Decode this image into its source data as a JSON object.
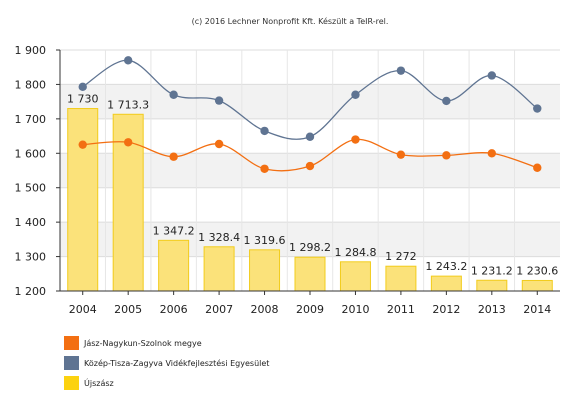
{
  "source_note": "(c) 2016 Lechner Nonprofit Kft. Készült a TeIR-rel.",
  "chart_data": {
    "type": "bar+line",
    "categories": [
      "2004",
      "2005",
      "2006",
      "2007",
      "2008",
      "2009",
      "2010",
      "2011",
      "2012",
      "2013",
      "2014"
    ],
    "ylim": [
      1200,
      1900
    ],
    "yticks": [
      1200,
      1300,
      1400,
      1500,
      1600,
      1700,
      1800,
      1900
    ],
    "ytick_labels": [
      "1 200",
      "1 300",
      "1 400",
      "1 500",
      "1 600",
      "1 700",
      "1 800",
      "1 900"
    ],
    "grid": "horizontal, alternating bands",
    "legend_position": "bottom-left",
    "bar_series": {
      "name": "Újszász",
      "color": "#fbe27a",
      "stroke": "#f2cc1c",
      "values": [
        1730,
        1713.3,
        1347.2,
        1328.4,
        1319.6,
        1298.2,
        1284.8,
        1272,
        1243.2,
        1231.2,
        1230.6
      ],
      "labels": [
        "1 730",
        "1 713.3",
        "1 347.2",
        "1 328.4",
        "1 319.6",
        "1 298.2",
        "1 284.8",
        "1 272",
        "1 243.2",
        "1 231.2",
        "1 230.6"
      ]
    },
    "line_series": [
      {
        "name": "Jász-Nagykun-Szolnok megye",
        "color": "#f36f12",
        "values": [
          1625,
          1632,
          1590,
          1627,
          1555,
          1563,
          1640,
          1596,
          1594,
          1600,
          1558
        ]
      },
      {
        "name": "Közép-Tisza-Zagyva Vidékfejlesztési Egyesület",
        "color": "#5f7492",
        "values": [
          1793,
          1870,
          1770,
          1753,
          1665,
          1648,
          1770,
          1840,
          1752,
          1826,
          1730
        ]
      }
    ]
  },
  "legend": {
    "items": [
      {
        "label": "Jász-Nagykun-Szolnok megye",
        "color": "#f36f12"
      },
      {
        "label": "Közép-Tisza-Zagyva Vidékfejlesztési Egyesület",
        "color": "#5f7492"
      },
      {
        "label": "Újszász",
        "color": "#fcd20f"
      }
    ]
  }
}
